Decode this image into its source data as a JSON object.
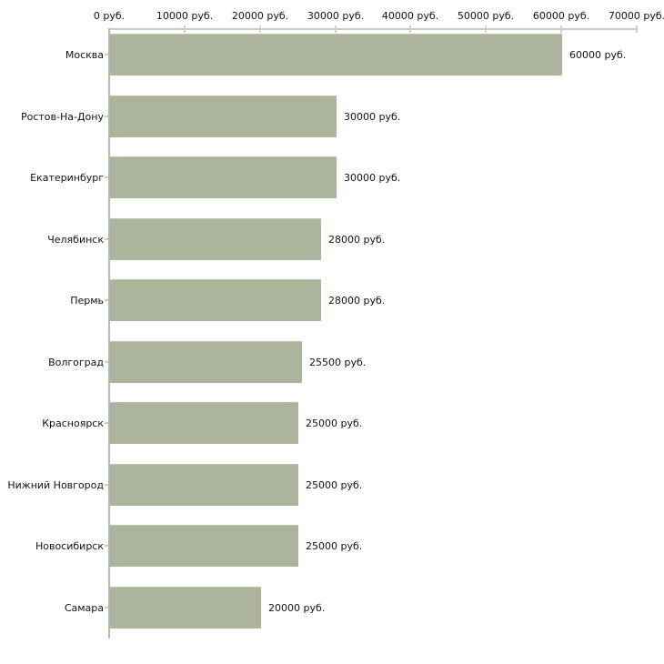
{
  "chart_data": {
    "type": "bar",
    "orientation": "horizontal",
    "title": "",
    "xlabel": "",
    "ylabel": "",
    "unit_suffix": " руб.",
    "categories": [
      "Москва",
      "Ростов-На-Дону",
      "Екатеринбург",
      "Челябинск",
      "Пермь",
      "Волгоград",
      "Красноярск",
      "Нижний Новгород",
      "Новосибирск",
      "Самара"
    ],
    "values": [
      60000,
      30000,
      30000,
      28000,
      28000,
      25500,
      25000,
      25000,
      25000,
      20000
    ],
    "value_labels": [
      "60000 руб.",
      "30000 руб.",
      "30000 руб.",
      "28000 руб.",
      "28000 руб.",
      "25500 руб.",
      "25000 руб.",
      "25000 руб.",
      "25000 руб.",
      "20000 руб."
    ],
    "x_tick_values": [
      0,
      10000,
      20000,
      30000,
      40000,
      50000,
      60000,
      70000
    ],
    "x_tick_labels": [
      "0 руб.",
      "10000 руб.",
      "20000 руб.",
      "30000 руб.",
      "40000 руб.",
      "50000 руб.",
      "60000 руб.",
      "70000 руб."
    ],
    "xlim": [
      0,
      70000
    ],
    "grid": false,
    "legend": null,
    "axis_position": "top",
    "colors": {
      "bar_fill": "#adb49c",
      "bar_top_edge": "#bfc5ae",
      "x_axis_line": "#c9c9c9",
      "y_axis_line": "#b6b6b6",
      "tick_mark": "#d5d1ae",
      "text": "#111111",
      "background": "#ffffff"
    }
  }
}
